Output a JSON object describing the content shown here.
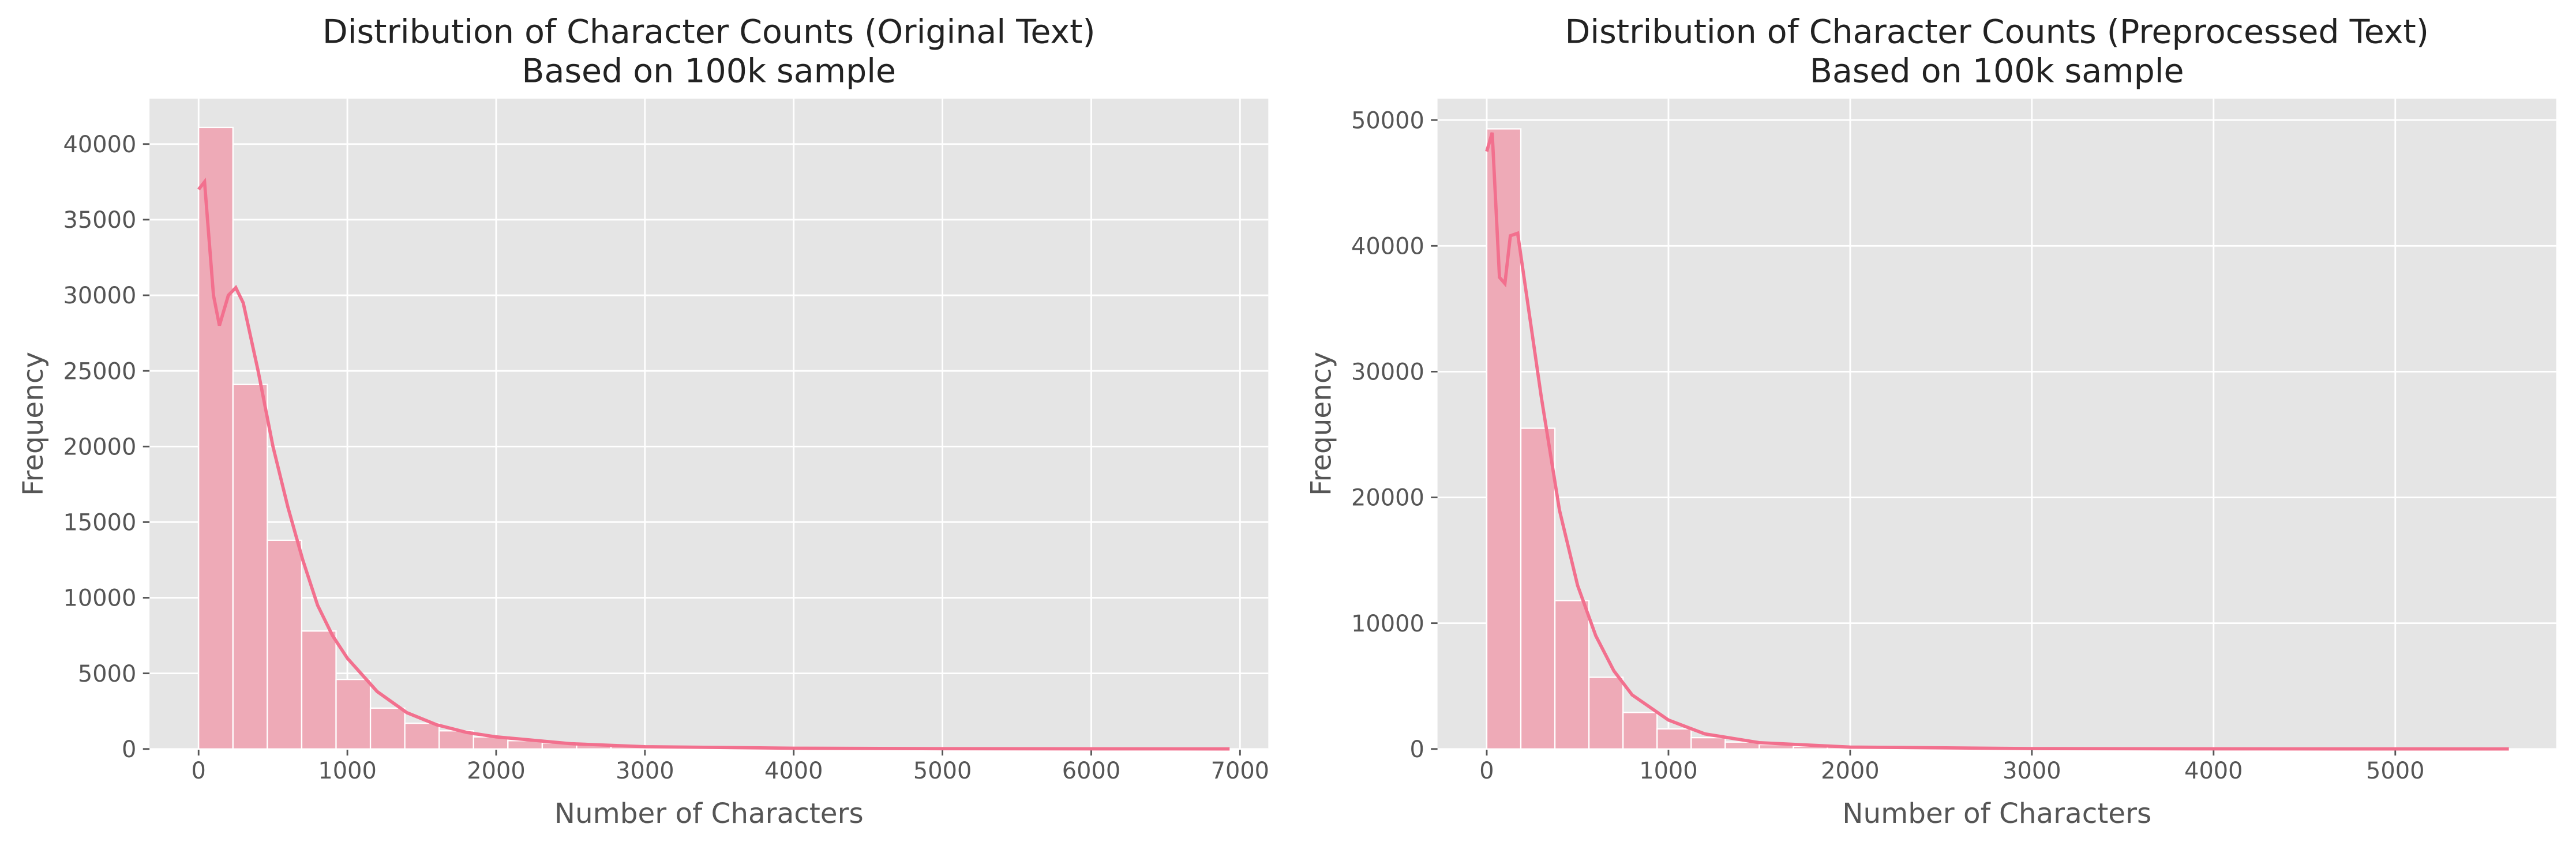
{
  "chart_data": [
    {
      "type": "histogram",
      "title": "Distribution of Character Counts (Original Text)",
      "subtitle": "Based on 100k sample",
      "xlabel": "Number of Characters",
      "ylabel": "Frequency",
      "bins": [
        0,
        231,
        462,
        693,
        924,
        1155,
        1386,
        1617,
        1848,
        2079,
        2310,
        2541,
        2772,
        3003,
        3234,
        3465,
        3696,
        3927,
        4158,
        4389,
        4620,
        4851,
        5082,
        5313,
        5544,
        5775,
        6006,
        6237,
        6468,
        6699,
        6930
      ],
      "counts": [
        41100,
        24100,
        13800,
        7800,
        4600,
        2700,
        1700,
        1200,
        800,
        550,
        400,
        280,
        200,
        150,
        100,
        80,
        60,
        40,
        30,
        25,
        20,
        15,
        10,
        10,
        8,
        6,
        5,
        4,
        3,
        2
      ],
      "color": "#eeaab7",
      "kde": {
        "color": "#f2708e",
        "x": [
          0,
          40,
          100,
          140,
          200,
          250,
          300,
          400,
          500,
          600,
          700,
          800,
          900,
          1000,
          1200,
          1400,
          1600,
          1800,
          2000,
          2500,
          3000,
          4000,
          5000,
          6000,
          6930
        ],
        "values": [
          37000,
          37500,
          30000,
          28000,
          30000,
          30500,
          29500,
          25000,
          20000,
          16000,
          12500,
          9500,
          7500,
          6000,
          3800,
          2400,
          1600,
          1100,
          800,
          350,
          150,
          50,
          20,
          10,
          5
        ]
      },
      "xlim": [
        -330,
        7190
      ],
      "ylim": [
        0,
        43000
      ],
      "xticks": [
        0,
        1000,
        2000,
        3000,
        4000,
        5000,
        6000,
        7000
      ],
      "yticks": [
        0,
        5000,
        10000,
        15000,
        20000,
        25000,
        30000,
        35000,
        40000
      ],
      "grid": true
    },
    {
      "type": "histogram",
      "title": "Distribution of Character Counts (Preprocessed Text)",
      "subtitle": "Based on 100k sample",
      "xlabel": "Number of Characters",
      "ylabel": "Frequency",
      "bins": [
        0,
        187.5,
        375,
        562.5,
        750,
        937.5,
        1125,
        1312.5,
        1500,
        1687.5,
        1875,
        2062.5,
        2250,
        2437.5,
        2625,
        2812.5,
        3000,
        3187.5,
        3375,
        3562.5,
        3750,
        3937.5,
        4125,
        4312.5,
        4500,
        4687.5,
        4875,
        5062.5,
        5250,
        5437.5,
        5625
      ],
      "counts": [
        49300,
        25500,
        11800,
        5700,
        2900,
        1600,
        900,
        550,
        350,
        220,
        150,
        100,
        70,
        50,
        35,
        25,
        20,
        15,
        10,
        8,
        6,
        5,
        4,
        3,
        2,
        2,
        1,
        1,
        1,
        1
      ],
      "color": "#eeaab7",
      "kde": {
        "color": "#f2708e",
        "x": [
          0,
          30,
          70,
          100,
          130,
          170,
          220,
          300,
          400,
          500,
          600,
          700,
          800,
          1000,
          1200,
          1500,
          2000,
          3000,
          4000,
          5000,
          5625
        ],
        "values": [
          47500,
          49000,
          37500,
          37000,
          40800,
          41000,
          36000,
          28000,
          19000,
          13000,
          9000,
          6200,
          4300,
          2300,
          1200,
          500,
          150,
          30,
          10,
          5,
          3
        ]
      },
      "xlim": [
        -271,
        5886
      ],
      "ylim": [
        0,
        51700
      ],
      "xticks": [
        0,
        1000,
        2000,
        3000,
        4000,
        5000
      ],
      "yticks": [
        0,
        10000,
        20000,
        30000,
        40000,
        50000
      ],
      "grid": true
    }
  ]
}
